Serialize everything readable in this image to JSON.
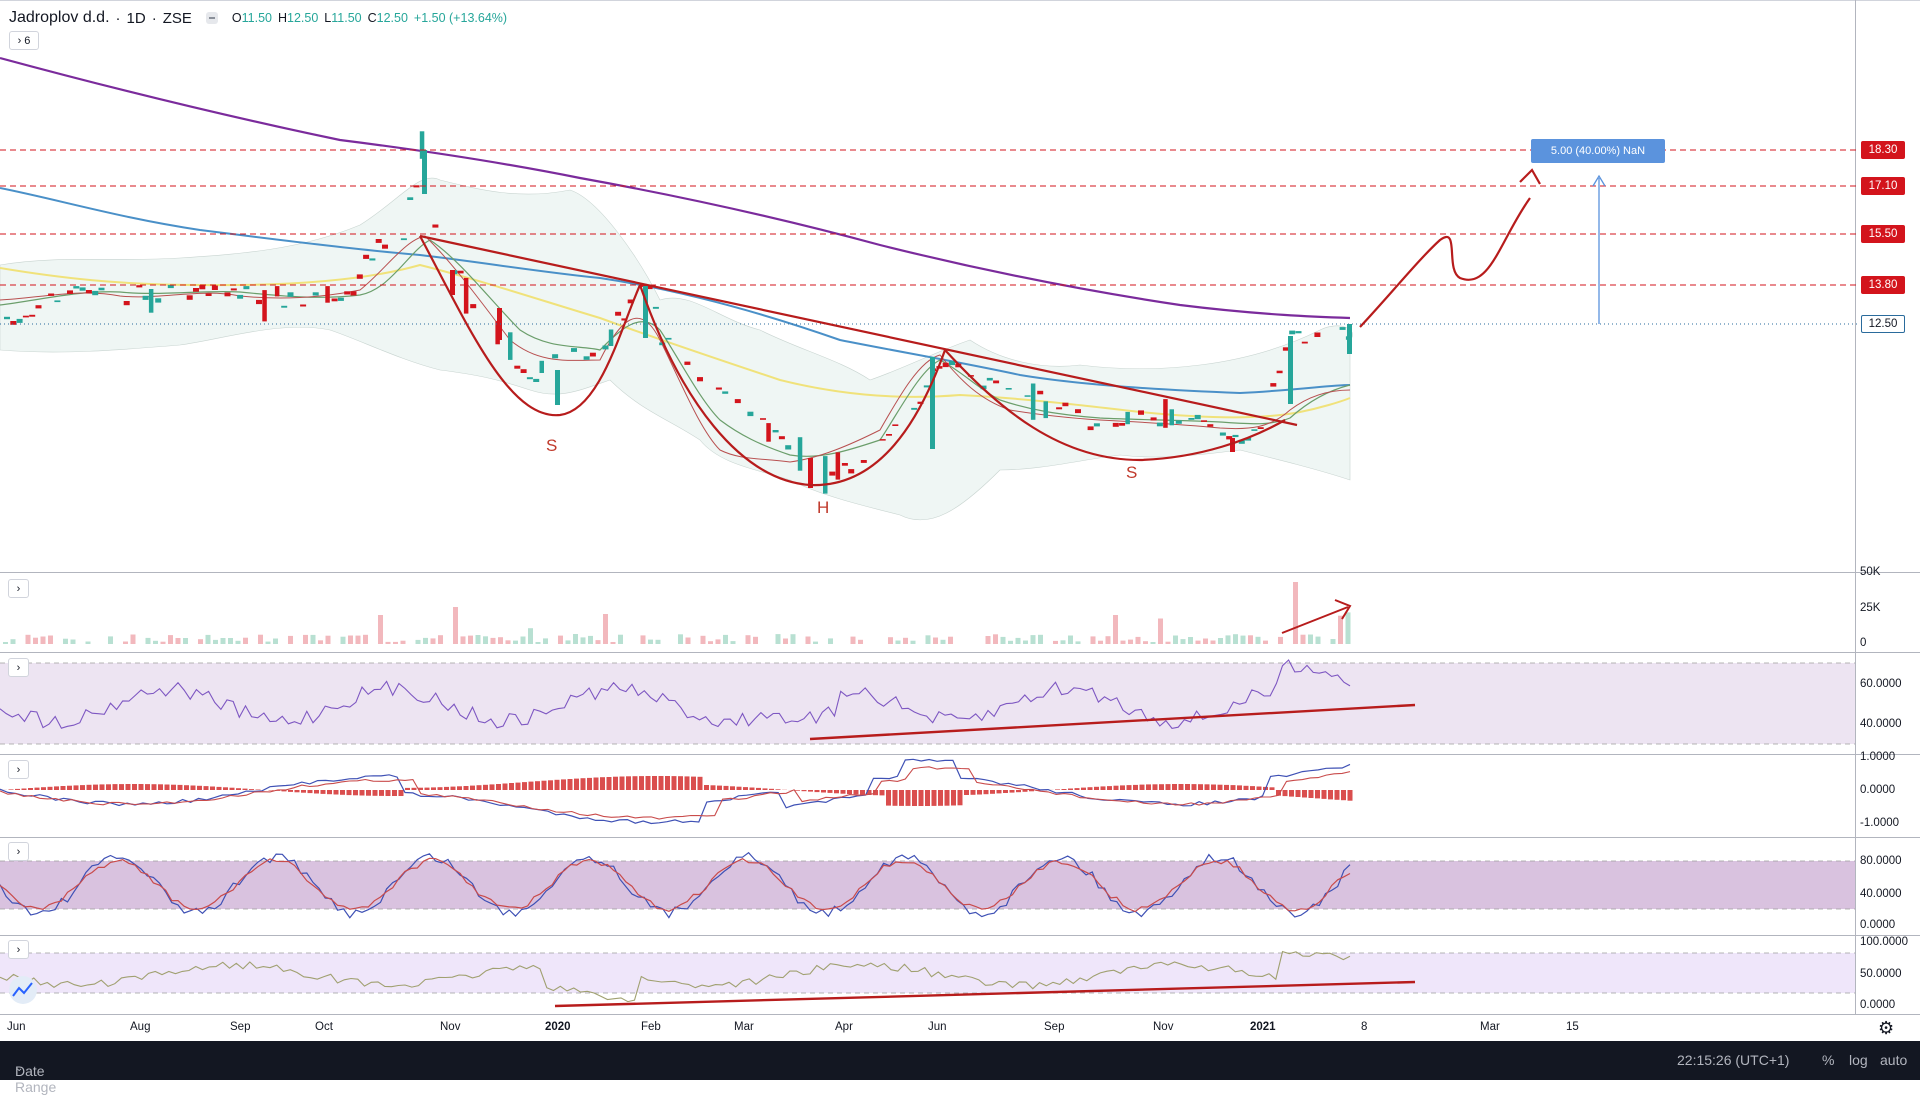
{
  "header": {
    "symbol": "Jadroplov d.d.",
    "interval": "1D",
    "exchange": "ZSE",
    "open_label": "O",
    "open": "11.50",
    "high_label": "H",
    "high": "12.50",
    "low_label": "L",
    "low": "11.50",
    "close_label": "C",
    "close": "12.50",
    "change": "+1.50 (+13.64%)"
  },
  "indicators_toggle": "6",
  "price_levels": [
    "18.30",
    "17.10",
    "15.50",
    "13.80"
  ],
  "current_price": "12.50",
  "measure_label": "5.00 (40.00%) NaN",
  "pattern_labels": {
    "left": "S",
    "head": "H",
    "right": "S"
  },
  "volume_axis": [
    "50K",
    "25K",
    "0"
  ],
  "osc1_axis": [
    "60.0000",
    "40.0000"
  ],
  "macd_axis": [
    "1.0000",
    "0.0000",
    "-1.0000"
  ],
  "stoch_axis": [
    "80.0000",
    "40.0000",
    "0.0000"
  ],
  "osc4_axis": [
    "100.0000",
    "50.0000",
    "0.0000"
  ],
  "time_axis": [
    "Jun",
    "Aug",
    "Sep",
    "Oct",
    "Nov",
    "2020",
    "Feb",
    "Mar",
    "Apr",
    "Jun",
    "Sep",
    "Nov",
    "2021",
    "8",
    "Mar",
    "15"
  ],
  "bottom": {
    "date_range": "Date Range",
    "clock": "22:15:26 (UTC+1)",
    "percent": "%",
    "log": "log",
    "auto": "auto"
  },
  "colors": {
    "up": "#26a69a",
    "down": "#d3141c",
    "annotation": "#c0392b",
    "ma_purple": "#7b2b9c",
    "ma_blue": "#4a90c8",
    "ma_yellow": "#f0e27a",
    "level_tag": "#d3141c",
    "measure": "#5b93dd"
  }
}
